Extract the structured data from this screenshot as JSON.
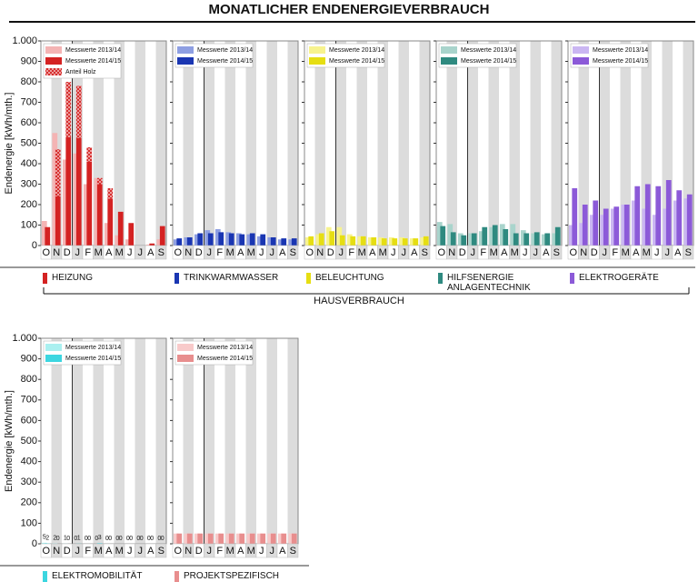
{
  "title": "MONATLICHER ENDENERGIEVERBRAUCH",
  "y_label": "Endenergie [kWh/mth.]",
  "group_label": "HAUSVERBRAUCH",
  "chart_data": [
    {
      "type": "bar",
      "label": "HEIZUNG",
      "categories": [
        "O",
        "N",
        "D",
        "J",
        "F",
        "M",
        "A",
        "M",
        "J",
        "J",
        "A",
        "S"
      ],
      "series": [
        {
          "name": "Messwerte 2013/14",
          "color": "#f4b4b4",
          "values": [
            120,
            550,
            420,
            450,
            300,
            330,
            110,
            50,
            30,
            0,
            5,
            30
          ]
        },
        {
          "name": "Messwerte 2014/15",
          "color": "#d42222",
          "values": [
            90,
            240,
            530,
            525,
            410,
            300,
            230,
            165,
            110,
            0,
            10,
            95
          ]
        },
        {
          "name": "Anteil Holz",
          "color": "#d42222",
          "pattern": "hatch",
          "stack": true,
          "values": [
            0,
            230,
            270,
            255,
            70,
            30,
            50,
            0,
            0,
            0,
            0,
            0
          ]
        }
      ],
      "ylim": [
        0,
        1000
      ],
      "yticks": [
        0,
        100,
        200,
        300,
        400,
        500,
        600,
        700,
        800,
        900,
        {
          "value": 1000,
          "label": "1.000"
        }
      ]
    },
    {
      "type": "bar",
      "label": "TRINKWARMWASSER",
      "categories": [
        "O",
        "N",
        "D",
        "J",
        "F",
        "M",
        "A",
        "M",
        "J",
        "J",
        "A",
        "S"
      ],
      "series": [
        {
          "name": "Messwerte 2013/14",
          "color": "#8e9fe2",
          "values": [
            30,
            40,
            55,
            75,
            80,
            65,
            60,
            55,
            45,
            40,
            30,
            30
          ]
        },
        {
          "name": "Messwerte 2014/15",
          "color": "#1a36b2",
          "values": [
            35,
            40,
            60,
            60,
            65,
            60,
            55,
            60,
            55,
            40,
            35,
            35
          ]
        }
      ],
      "ylim": [
        0,
        1000
      ],
      "yticks": [
        0,
        100,
        200,
        300,
        400,
        500,
        600,
        700,
        800,
        900,
        {
          "value": 1000,
          "label": "1.000"
        }
      ]
    },
    {
      "type": "bar",
      "label": "BELEUCHTUNG",
      "categories": [
        "O",
        "N",
        "D",
        "J",
        "F",
        "M",
        "A",
        "M",
        "J",
        "J",
        "A",
        "S"
      ],
      "series": [
        {
          "name": "Messwerte 2013/14",
          "color": "#f7f38e",
          "values": [
            40,
            55,
            90,
            90,
            55,
            45,
            40,
            40,
            40,
            40,
            35,
            40
          ]
        },
        {
          "name": "Messwerte 2014/15",
          "color": "#e6de12",
          "values": [
            45,
            60,
            70,
            50,
            45,
            45,
            40,
            35,
            35,
            35,
            35,
            45
          ]
        }
      ],
      "ylim": [
        0,
        1000
      ],
      "yticks": [
        0,
        100,
        200,
        300,
        400,
        500,
        600,
        700,
        800,
        900,
        {
          "value": 1000,
          "label": "1.000"
        }
      ]
    },
    {
      "type": "bar",
      "label": "HILFSENERGIE ANLAGENTECHNIK",
      "categories": [
        "O",
        "N",
        "D",
        "J",
        "F",
        "M",
        "A",
        "M",
        "J",
        "J",
        "A",
        "S"
      ],
      "series": [
        {
          "name": "Messwerte 2013/14",
          "color": "#a9d4cc",
          "values": [
            115,
            105,
            60,
            60,
            70,
            90,
            105,
            105,
            75,
            60,
            55,
            60
          ]
        },
        {
          "name": "Messwerte 2014/15",
          "color": "#2f8a80",
          "values": [
            95,
            65,
            50,
            60,
            90,
            100,
            80,
            60,
            60,
            65,
            60,
            90
          ]
        }
      ],
      "ylim": [
        0,
        1000
      ],
      "yticks": [
        0,
        100,
        200,
        300,
        400,
        500,
        600,
        700,
        800,
        900,
        {
          "value": 1000,
          "label": "1.000"
        }
      ]
    },
    {
      "type": "bar",
      "label": "ELEKTROGERÄTE",
      "categories": [
        "O",
        "N",
        "D",
        "J",
        "F",
        "M",
        "A",
        "M",
        "J",
        "J",
        "A",
        "S"
      ],
      "series": [
        {
          "name": "Messwerte 2013/14",
          "color": "#cab6f2",
          "values": [
            100,
            110,
            150,
            150,
            180,
            200,
            220,
            180,
            150,
            180,
            220,
            230
          ]
        },
        {
          "name": "Messwerte 2014/15",
          "color": "#8c5ad8",
          "values": [
            280,
            200,
            220,
            180,
            190,
            200,
            290,
            300,
            290,
            320,
            270,
            250
          ]
        }
      ],
      "ylim": [
        0,
        1000
      ],
      "yticks": [
        0,
        100,
        200,
        300,
        400,
        500,
        600,
        700,
        800,
        900,
        {
          "value": 1000,
          "label": "1.000"
        }
      ]
    },
    {
      "type": "bar",
      "label": "ELEKTROMOBILITÄT",
      "show_values": true,
      "categories": [
        "O",
        "N",
        "D",
        "J",
        "F",
        "M",
        "A",
        "M",
        "J",
        "J",
        "A",
        "S"
      ],
      "series": [
        {
          "name": "Messwerte 2013/14",
          "color": "#aaf0f0",
          "values": [
            5,
            2,
            1,
            0,
            0,
            0,
            0,
            0,
            0,
            0,
            0,
            0
          ]
        },
        {
          "name": "Messwerte 2014/15",
          "color": "#3cd6e0",
          "values": [
            2,
            0,
            0,
            1,
            0,
            3,
            0,
            0,
            0,
            0,
            0,
            0
          ]
        }
      ],
      "ylim": [
        0,
        1000
      ],
      "yticks": [
        0,
        100,
        200,
        300,
        400,
        500,
        600,
        700,
        800,
        900,
        {
          "value": 1000,
          "label": "1.000"
        }
      ]
    },
    {
      "type": "bar",
      "label": "PROJEKTSPEZIFISCH",
      "categories": [
        "O",
        "N",
        "D",
        "J",
        "F",
        "M",
        "A",
        "M",
        "J",
        "J",
        "A",
        "S"
      ],
      "series": [
        {
          "name": "Messwerte 2013/14",
          "color": "#f8caca",
          "values": [
            50,
            50,
            50,
            50,
            50,
            50,
            50,
            50,
            50,
            50,
            50,
            50
          ]
        },
        {
          "name": "Messwerte 2014/15",
          "color": "#e88e8e",
          "values": [
            50,
            50,
            50,
            50,
            50,
            50,
            50,
            50,
            50,
            50,
            50,
            50
          ]
        }
      ],
      "ylim": [
        0,
        1000
      ],
      "yticks": [
        0,
        100,
        200,
        300,
        400,
        500,
        600,
        700,
        800,
        900,
        {
          "value": 1000,
          "label": "1.000"
        }
      ]
    }
  ]
}
